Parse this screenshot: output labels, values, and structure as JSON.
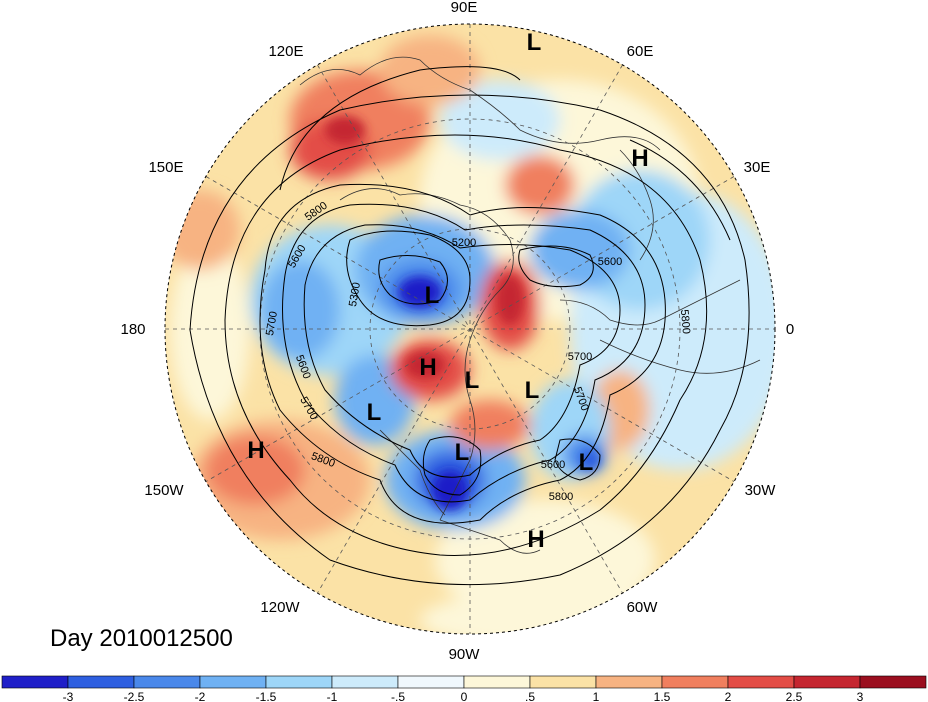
{
  "title": "Day 2010012500",
  "longitude_labels": [
    "90E",
    "60E",
    "30E",
    "0",
    "30W",
    "60W",
    "90W",
    "120W",
    "150W",
    "180",
    "150E",
    "120E"
  ],
  "pressure_centers": [
    "L",
    "H",
    "L",
    "L",
    "H",
    "L",
    "L",
    "L",
    "L",
    "H",
    "H"
  ],
  "contour_labels": [
    "5200",
    "5300",
    "5600",
    "5700",
    "5800",
    "5600",
    "5700",
    "5800",
    "5600",
    "5700",
    "5800",
    "5800",
    "5700",
    "5600"
  ],
  "colorbar": {
    "ticks": [
      "-3",
      "-2.5",
      "-2",
      "-1.5",
      "-1",
      "-.5",
      "0",
      ".5",
      "1",
      "1.5",
      "2",
      "2.5",
      "3"
    ],
    "colors": [
      "#1f1fc8",
      "#2e5fe0",
      "#4a88ea",
      "#6fb1f3",
      "#9ed6f8",
      "#cdebfb",
      "#f0f8fd",
      "#fdf7d9",
      "#fbe2a6",
      "#f7b382",
      "#f07f5e",
      "#e34d46",
      "#c52630",
      "#9b0f1f"
    ]
  }
}
